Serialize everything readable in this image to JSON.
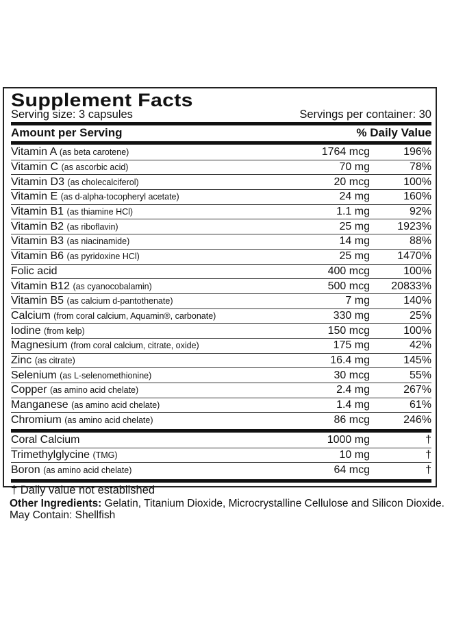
{
  "title": "Supplement Facts",
  "serving_size": "Serving size: 3 capsules",
  "servings_per_container": "Servings per container: 30",
  "header": {
    "amount": "Amount per Serving",
    "dv": "% Daily Value"
  },
  "rows": [
    {
      "name": "Vitamin A",
      "detail": "(as beta carotene)",
      "amount": "1764 mcg",
      "dv": "196%"
    },
    {
      "name": "Vitamin C",
      "detail": "(as ascorbic acid)",
      "amount": "70 mg",
      "dv": "78%"
    },
    {
      "name": "Vitamin D3",
      "detail": "(as cholecalciferol)",
      "amount": "20 mcg",
      "dv": "100%"
    },
    {
      "name": "Vitamin E",
      "detail": "(as d-alpha-tocopheryl acetate)",
      "amount": "24 mg",
      "dv": "160%"
    },
    {
      "name": "Vitamin B1",
      "detail": "(as thiamine HCl)",
      "amount": "1.1 mg",
      "dv": "92%"
    },
    {
      "name": "Vitamin B2",
      "detail": "(as riboflavin)",
      "amount": "25 mg",
      "dv": "1923%"
    },
    {
      "name": "Vitamin B3",
      "detail": "(as niacinamide)",
      "amount": "14 mg",
      "dv": "88%"
    },
    {
      "name": "Vitamin B6",
      "detail": "(as pyridoxine HCl)",
      "amount": "25 mg",
      "dv": "1470%"
    },
    {
      "name": "Folic acid",
      "detail": "",
      "amount": "400 mcg",
      "dv": "100%"
    },
    {
      "name": "Vitamin B12",
      "detail": "(as cyanocobalamin)",
      "amount": "500 mcg",
      "dv": "20833%"
    },
    {
      "name": "Vitamin B5",
      "detail": "(as calcium d-pantothenate)",
      "amount": "7 mg",
      "dv": "140%"
    },
    {
      "name": "Calcium",
      "detail": "(from coral calcium, Aquamin®, carbonate)",
      "amount": "330 mg",
      "dv": "25%"
    },
    {
      "name": "Iodine",
      "detail": "(from kelp)",
      "amount": "150 mcg",
      "dv": "100%"
    },
    {
      "name": "Magnesium",
      "detail": "(from coral calcium, citrate, oxide)",
      "amount": "175 mg",
      "dv": "42%"
    },
    {
      "name": "Zinc",
      "detail": "(as citrate)",
      "amount": "16.4 mg",
      "dv": "145%"
    },
    {
      "name": "Selenium",
      "detail": "(as L-selenomethionine)",
      "amount": "30 mcg",
      "dv": "55%"
    },
    {
      "name": "Copper",
      "detail": "(as amino acid chelate)",
      "amount": "2.4 mg",
      "dv": "267%"
    },
    {
      "name": "Manganese",
      "detail": "(as amino acid chelate)",
      "amount": "1.4 mg",
      "dv": "61%"
    },
    {
      "name": "Chromium",
      "detail": "(as amino acid chelate)",
      "amount": "86 mcg",
      "dv": "246%"
    }
  ],
  "other_rows": [
    {
      "name": "Coral Calcium",
      "detail": "",
      "amount": "1000 mg",
      "dv": "†"
    },
    {
      "name": "Trimethylglycine",
      "detail": "(TMG)",
      "amount": "10 mg",
      "dv": "†"
    },
    {
      "name": "Boron",
      "detail": "(as amino acid chelate)",
      "amount": "64 mcg",
      "dv": "†"
    }
  ],
  "footnote": "† Daily value not established",
  "other_ingredients": {
    "label": "Other Ingredients:",
    "text": " Gelatin, Titanium Dioxide, Microcrystalline Cellulose and Silicon Dioxide.",
    "may_contain": "May Contain: Shellfish"
  }
}
